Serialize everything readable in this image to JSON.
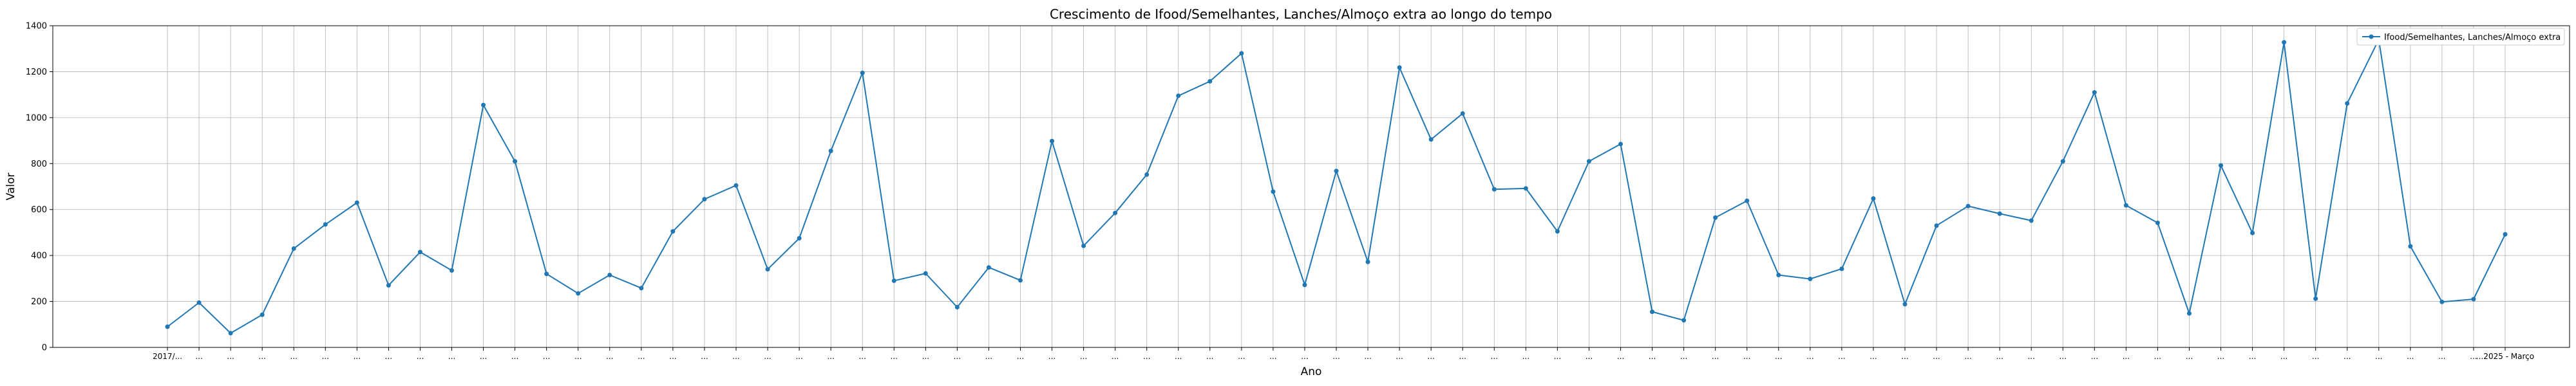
{
  "chart_data": {
    "type": "line",
    "title": "Crescimento de Ifood/Semelhantes, Lanches/Almoço extra ao longo do tempo",
    "xlabel": "Ano",
    "ylabel": "Valor",
    "ylim": [
      0,
      1400
    ],
    "yticks": [
      0,
      200,
      400,
      600,
      800,
      1000,
      1200,
      1400
    ],
    "grid": true,
    "legend_position": "top-right",
    "color": "#1f77b4",
    "series": [
      {
        "name": "Ifood/Semelhantes, Lanches/Almoço extra",
        "values": [
          90,
          195,
          62,
          142,
          430,
          535,
          630,
          270,
          415,
          335,
          1055,
          810,
          320,
          235,
          315,
          258,
          505,
          645,
          705,
          340,
          475,
          855,
          1195,
          290,
          322,
          175,
          348,
          292,
          898,
          442,
          585,
          752,
          1095,
          1158,
          1280,
          678,
          272,
          768,
          372,
          1218,
          905,
          1018,
          688,
          692,
          505,
          810,
          885,
          155,
          118,
          565,
          638,
          315,
          298,
          342,
          648,
          188,
          530,
          615,
          582,
          552,
          810,
          1110,
          618,
          542,
          148,
          792,
          498,
          1328,
          212,
          1062,
          1340,
          440,
          198,
          210,
          492
        ]
      }
    ],
    "categories": [
      "2017/...",
      "...",
      "...",
      "...",
      "...",
      "...",
      "...",
      "...",
      "...",
      "...",
      "...",
      "...",
      "...",
      "...",
      "...",
      "...",
      "...",
      "...",
      "...",
      "...",
      "...",
      "...",
      "...",
      "...",
      "...",
      "...",
      "...",
      "...",
      "...",
      "...",
      "...",
      "...",
      "...",
      "...",
      "...",
      "...",
      "...",
      "...",
      "...",
      "...",
      "...",
      "...",
      "...",
      "...",
      "...",
      "...",
      "...",
      "...",
      "...",
      "...",
      "...",
      "...",
      "...",
      "...",
      "...",
      "...",
      "...",
      "...",
      "...",
      "...",
      "...",
      "...",
      "...",
      "...",
      "...",
      "...",
      "...",
      "...",
      "...",
      "...",
      "...",
      "...",
      "...",
      "...",
      "...2025 - Março"
    ]
  }
}
